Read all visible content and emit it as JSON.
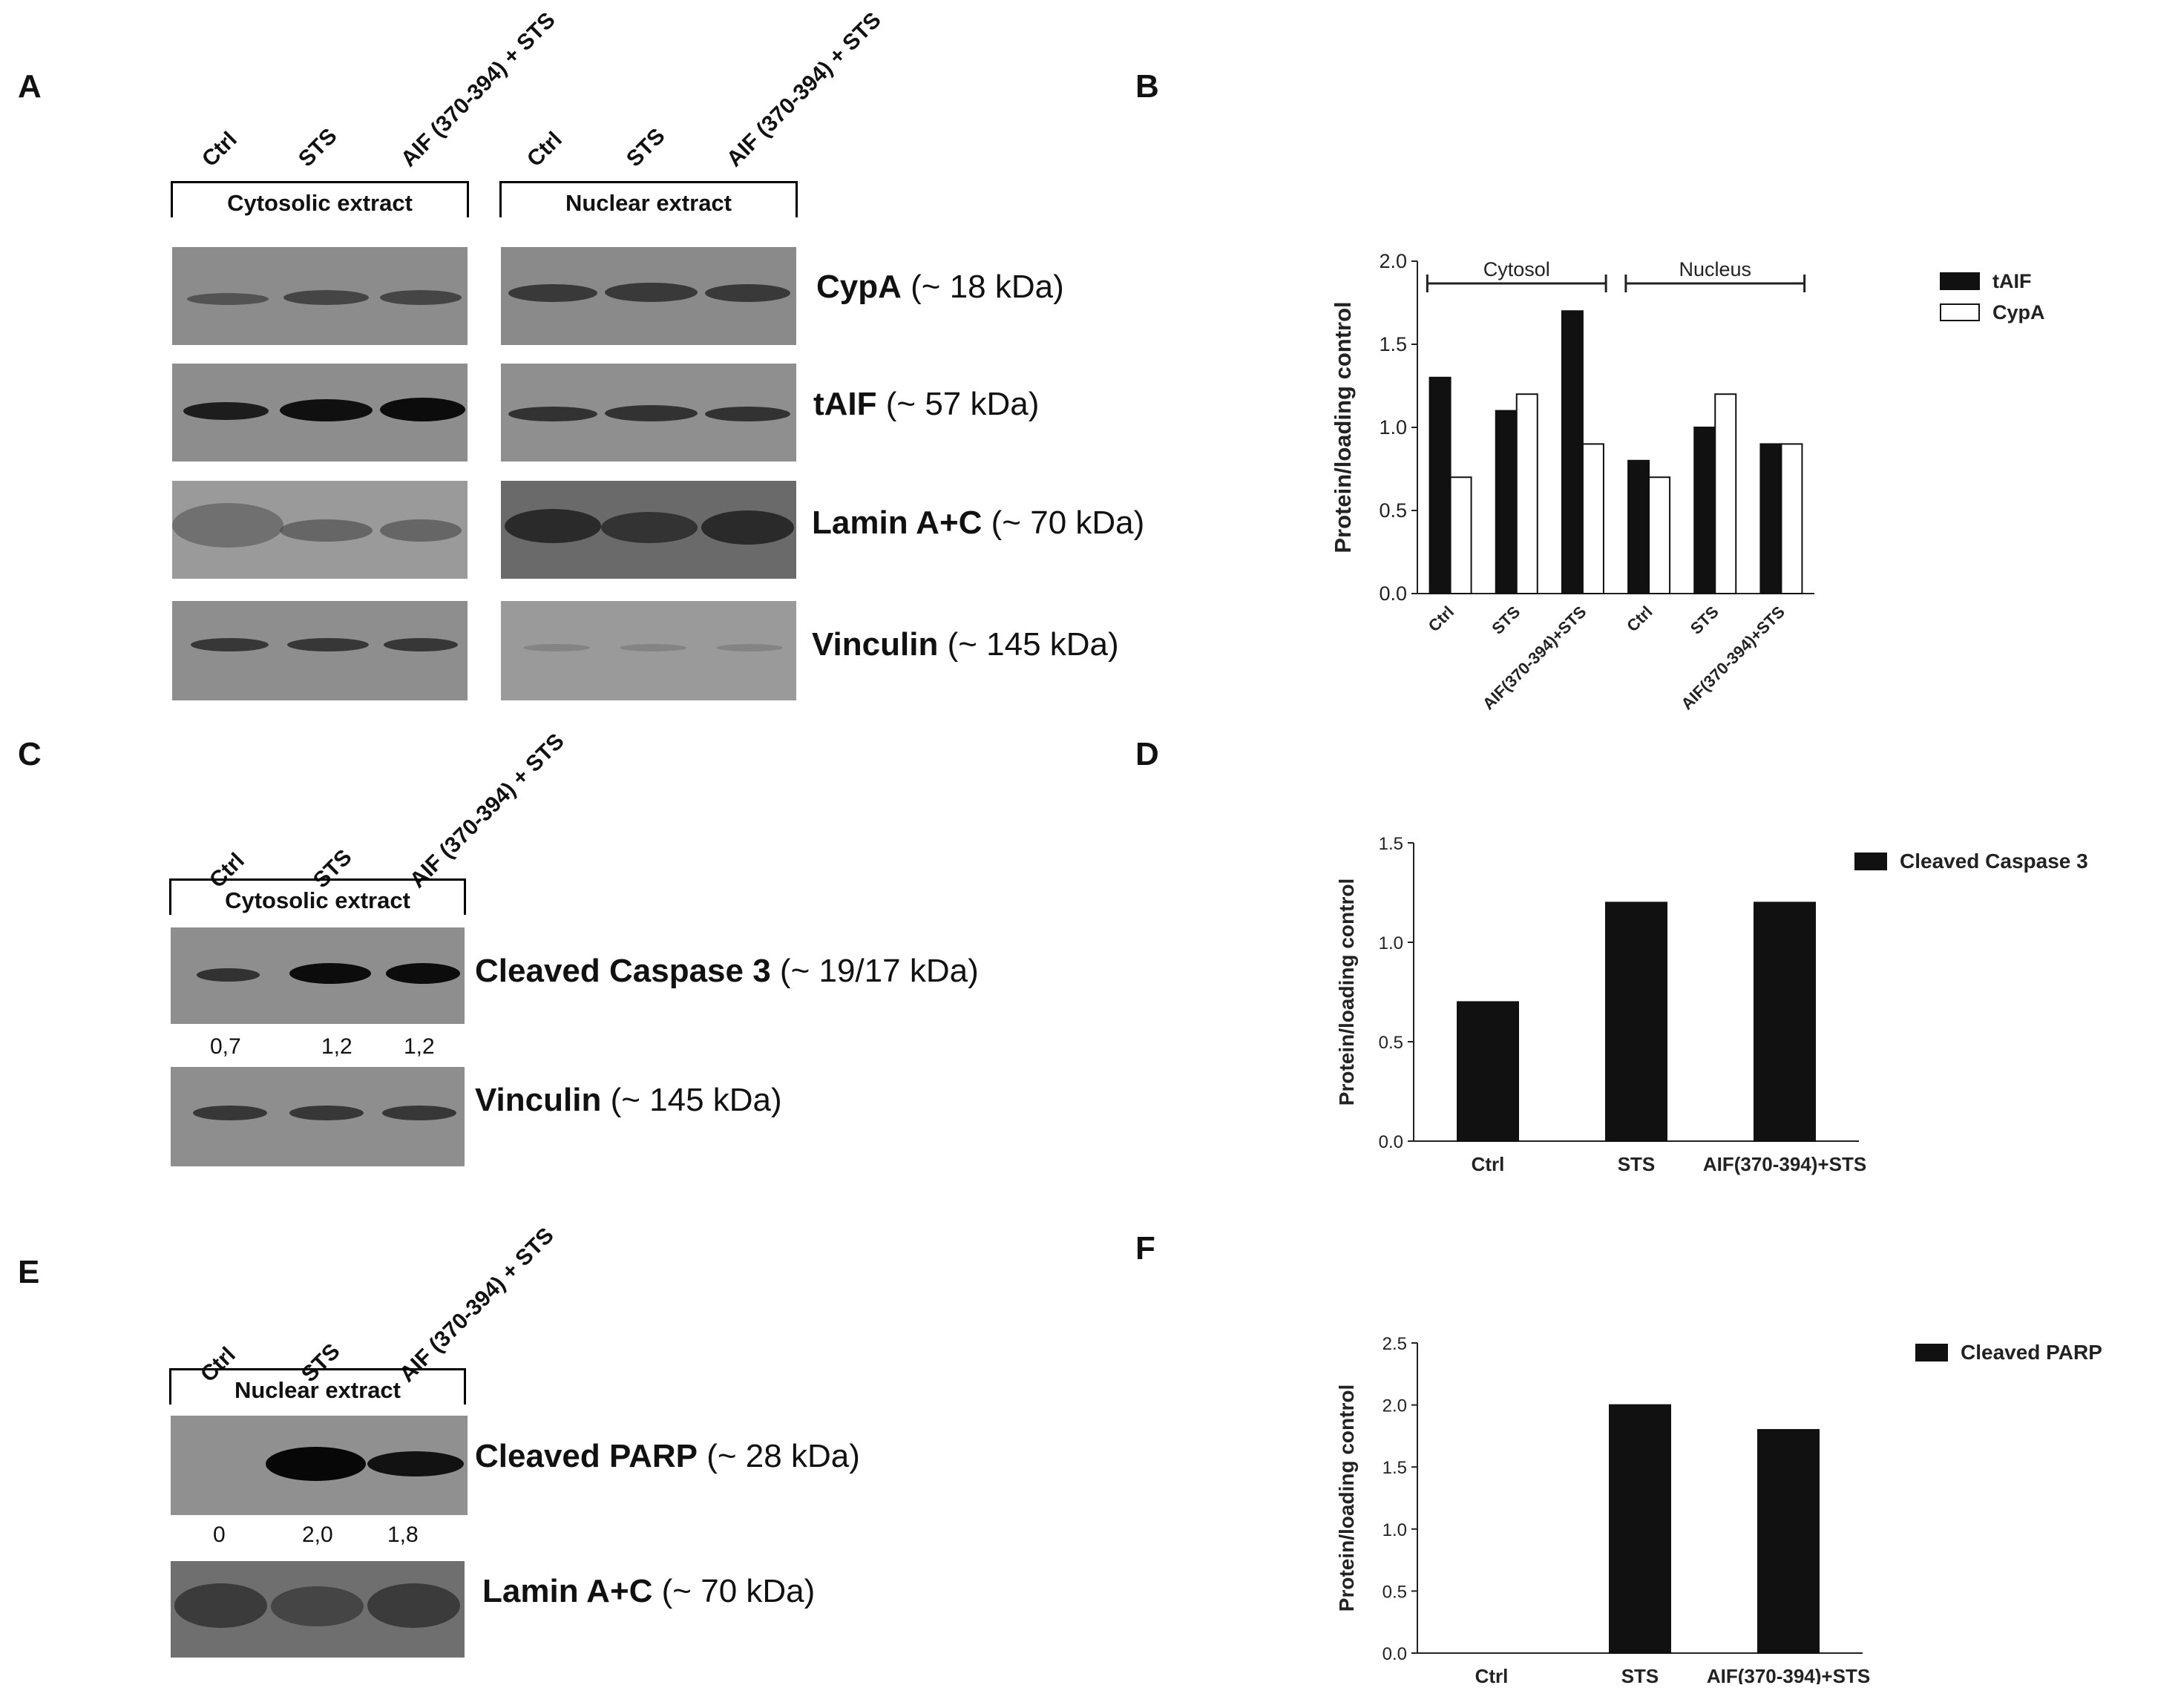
{
  "panels": {
    "A": {
      "letter": "A",
      "lanes_left": [
        "Ctrl",
        "STS",
        "AIF (370-394) + STS"
      ],
      "lanes_right": [
        "Ctrl",
        "STS",
        "AIF (370-394) + STS"
      ],
      "bracket_left": "Cytosolic extract",
      "bracket_right": "Nuclear extract",
      "blots": [
        {
          "name": "CypA",
          "size": "(~  18 kDa)"
        },
        {
          "name": "tAIF",
          "size": "(~  57 kDa)"
        },
        {
          "name": "Lamin A+C",
          "size": "(~  70 kDa)"
        },
        {
          "name": "Vinculin",
          "size": "(~  145 kDa)"
        }
      ]
    },
    "B": {
      "letter": "B"
    },
    "C": {
      "letter": "C",
      "lanes": [
        "Ctrl",
        "STS",
        "AIF (370-394) + STS"
      ],
      "bracket": "Cytosolic extract",
      "blots": [
        {
          "name": "Cleaved Caspase 3",
          "size": "(~  19/17 kDa)"
        },
        {
          "name": "Vinculin",
          "size": "(~  145 kDa)"
        }
      ],
      "quant": [
        "0,7",
        "1,2",
        "1,2"
      ]
    },
    "D": {
      "letter": "D"
    },
    "E": {
      "letter": "E",
      "lanes": [
        "Ctrl",
        "STS",
        "AIF (370-394) + STS"
      ],
      "bracket": "Nuclear extract",
      "blots": [
        {
          "name": "Cleaved PARP",
          "size": "(~  28 kDa)"
        },
        {
          "name": "Lamin A+C",
          "size": "(~  70 kDa)"
        }
      ],
      "quant": [
        "0",
        "2,0",
        "1,8"
      ]
    },
    "F": {
      "letter": "F"
    }
  },
  "chart_data": [
    {
      "panel": "B",
      "type": "bar",
      "ylabel": "Protein/loading control",
      "ylim": [
        0,
        2.0
      ],
      "yticks": [
        "0.0",
        "0.5",
        "1.0",
        "1.5",
        "2.0"
      ],
      "categories": [
        "Ctrl",
        "STS",
        "AIF(370-394)+STS",
        "Ctrl",
        "STS",
        "AIF(370-394)+STS"
      ],
      "groups": [
        {
          "label": "Cytosol"
        },
        {
          "label": "Nucleus"
        }
      ],
      "series": [
        {
          "name": "tAIF",
          "values": [
            1.3,
            1.1,
            1.7,
            0.8,
            1.0,
            0.9
          ],
          "color": "#111111"
        },
        {
          "name": "CypA",
          "values": [
            0.7,
            1.2,
            0.9,
            0.7,
            1.2,
            0.9
          ],
          "color": "#ffffff"
        }
      ],
      "legend": "top-right"
    },
    {
      "panel": "D",
      "type": "bar",
      "ylabel": "Protein/loading control",
      "ylim": [
        0,
        1.5
      ],
      "yticks": [
        "0.0",
        "0.5",
        "1.0",
        "1.5"
      ],
      "categories": [
        "Ctrl",
        "STS",
        "AIF(370-394)+STS"
      ],
      "series": [
        {
          "name": "Cleaved Caspase 3",
          "values": [
            0.7,
            1.2,
            1.2
          ],
          "color": "#111111"
        }
      ],
      "legend": "top-right"
    },
    {
      "panel": "F",
      "type": "bar",
      "ylabel": "Protein/loading control",
      "ylim": [
        0,
        2.5
      ],
      "yticks": [
        "0.0",
        "0.5",
        "1.0",
        "1.5",
        "2.0",
        "2.5"
      ],
      "categories": [
        "Ctrl",
        "STS",
        "AIF(370-394)+STS"
      ],
      "series": [
        {
          "name": "Cleaved PARP",
          "values": [
            0,
            2.0,
            1.8
          ],
          "color": "#111111"
        }
      ],
      "legend": "top-right"
    }
  ]
}
